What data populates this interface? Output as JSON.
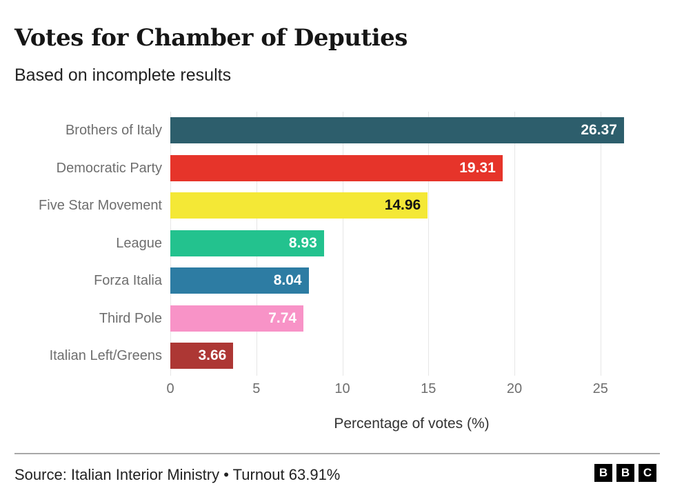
{
  "chart_data": {
    "type": "bar",
    "orientation": "horizontal",
    "title": "Votes for Chamber of Deputies",
    "subtitle": "Based on incomplete results",
    "categories": [
      "Brothers of Italy",
      "Democratic Party",
      "Five Star Movement",
      "League",
      "Forza Italia",
      "Third Pole",
      "Italian Left/Greens"
    ],
    "values": [
      26.37,
      19.31,
      14.96,
      8.93,
      8.04,
      7.74,
      3.66
    ],
    "bar_colors": [
      "#2d5e6c",
      "#e6342a",
      "#f4e836",
      "#23c28e",
      "#2d7ca3",
      "#f893c7",
      "#ad3734"
    ],
    "value_label_colors": [
      "#ffffff",
      "#ffffff",
      "#141414",
      "#ffffff",
      "#ffffff",
      "#ffffff",
      "#ffffff"
    ],
    "xlabel": "Percentage of votes (%)",
    "xticks": [
      0,
      5,
      10,
      15,
      20,
      25
    ],
    "xlim": [
      0,
      28
    ],
    "grid": true,
    "legend": false
  },
  "footer": {
    "source": "Source: Italian Interior Ministry • Turnout 63.91%",
    "logo_letters": [
      "B",
      "B",
      "C"
    ]
  }
}
